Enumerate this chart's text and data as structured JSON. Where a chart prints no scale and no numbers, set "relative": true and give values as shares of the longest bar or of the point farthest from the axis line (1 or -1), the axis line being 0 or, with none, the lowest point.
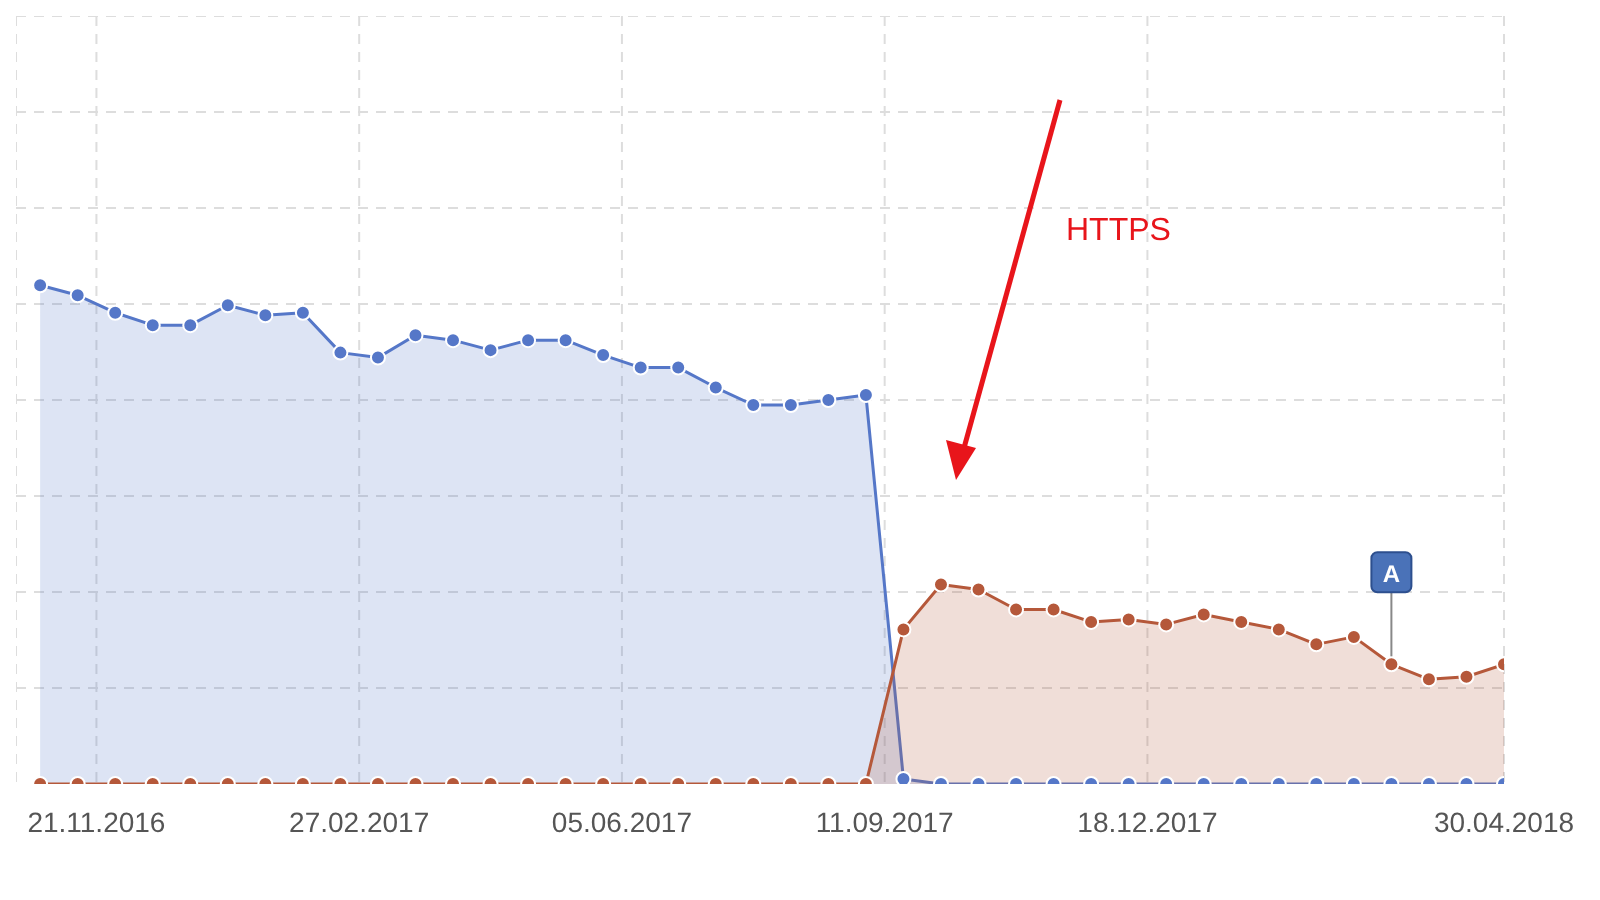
{
  "chart_data": {
    "type": "area",
    "relative": true,
    "x": [
      "2016-10-31",
      "2016-11-14",
      "2016-11-28",
      "2016-12-12",
      "2016-12-26",
      "2017-01-09",
      "2017-01-23",
      "2017-02-06",
      "2017-02-20",
      "2017-03-06",
      "2017-03-20",
      "2017-04-03",
      "2017-04-17",
      "2017-05-01",
      "2017-05-15",
      "2017-05-29",
      "2017-06-12",
      "2017-06-26",
      "2017-07-10",
      "2017-07-24",
      "2017-08-07",
      "2017-08-21",
      "2017-09-04",
      "2017-09-18",
      "2017-10-02",
      "2017-10-16",
      "2017-10-30",
      "2017-11-13",
      "2017-11-27",
      "2017-12-11",
      "2017-12-25",
      "2018-01-08",
      "2018-01-22",
      "2018-02-05",
      "2018-02-19",
      "2018-03-05",
      "2018-03-19",
      "2018-04-02",
      "2018-04-16",
      "2018-04-30"
    ],
    "series": [
      {
        "color": "#5577c8",
        "values": [
          1.0,
          0.98,
          0.945,
          0.92,
          0.92,
          0.96,
          0.94,
          0.945,
          0.865,
          0.855,
          0.9,
          0.89,
          0.87,
          0.89,
          0.89,
          0.86,
          0.835,
          0.835,
          0.795,
          0.76,
          0.76,
          0.77,
          0.78,
          0.01,
          0,
          0,
          0,
          0,
          0,
          0,
          0,
          0,
          0,
          0,
          0,
          0,
          0,
          0,
          0,
          0
        ]
      },
      {
        "color": "#b5583a",
        "values": [
          0,
          0,
          0,
          0,
          0,
          0,
          0,
          0,
          0,
          0,
          0,
          0,
          0,
          0,
          0,
          0,
          0,
          0,
          0,
          0,
          0,
          0,
          0,
          0.31,
          0.4,
          0.39,
          0.35,
          0.35,
          0.325,
          0.33,
          0.32,
          0.34,
          0.325,
          0.31,
          0.28,
          0.295,
          0.24,
          0.21,
          0.215,
          0.24
        ]
      }
    ],
    "xlim": [
      "2016-10-22",
      "2018-04-30"
    ],
    "xticks": [
      {
        "value": "2016-11-21",
        "label": "21.11.2016"
      },
      {
        "value": "2017-02-27",
        "label": "27.02.2017"
      },
      {
        "value": "2017-06-05",
        "label": "05.06.2017"
      },
      {
        "value": "2017-09-11",
        "label": "11.09.2017"
      },
      {
        "value": "2017-12-18",
        "label": "18.12.2017"
      },
      {
        "value": "2018-04-30",
        "label": "30.04.2018"
      }
    ],
    "annotations": [
      "HTTPS",
      {
        "text": "A",
        "x": "2018-03-19",
        "y": 0.24
      }
    ],
    "grid": true,
    "legend": false,
    "marker": "circle",
    "line_style": "solid"
  }
}
